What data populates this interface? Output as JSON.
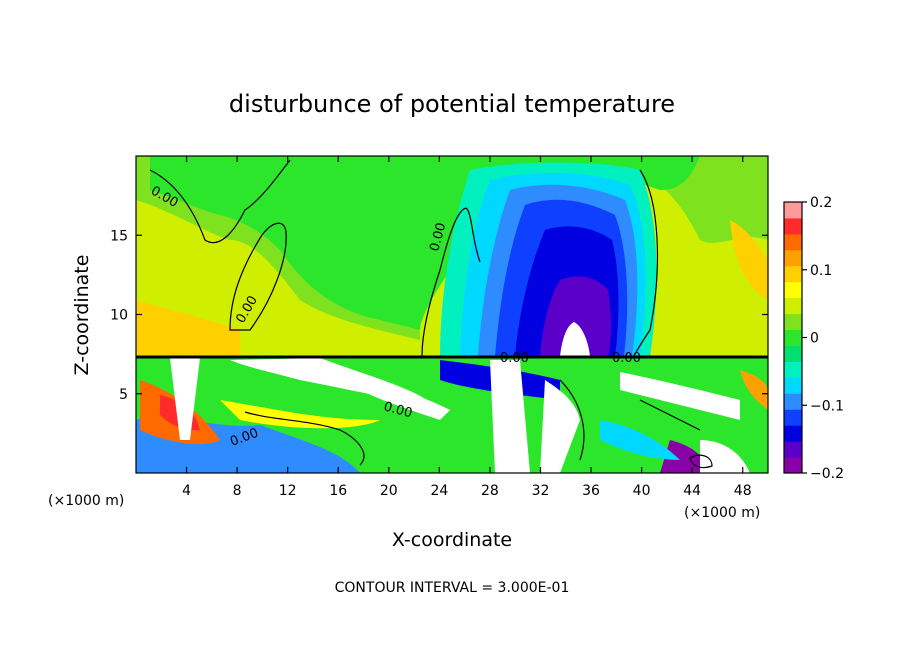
{
  "chart_data": {
    "type": "heatmap",
    "title": "disturbunce of potential temperature",
    "xlabel": "X-coordinate",
    "ylabel": "Z-coordinate",
    "x_unit": "(×1000 m)",
    "x_unit_right": "(×1000 m)",
    "xlim": [
      0,
      50
    ],
    "ylim": [
      0,
      20
    ],
    "x_ticks": [
      4,
      8,
      12,
      16,
      20,
      24,
      28,
      32,
      36,
      40,
      44,
      48
    ],
    "y_ticks": [
      5,
      10,
      15
    ],
    "colorbar": {
      "range": [
        -0.2,
        0.2
      ],
      "tick_values": [
        0.2,
        0.1,
        0,
        -0.1,
        -0.2
      ],
      "tick_labels": [
        "0.2",
        "0.1",
        "0",
        "−0.1",
        "−0.2"
      ],
      "colors": [
        "#8a00a8",
        "#5a00c8",
        "#0000e0",
        "#1040ff",
        "#2f8cff",
        "#00d8ff",
        "#00f0c0",
        "#00e070",
        "#2ce62c",
        "#7fe21e",
        "#cfee00",
        "#ffff00",
        "#ffd000",
        "#ffa000",
        "#ff6a00",
        "#ff2a2a",
        "#ff9a9a"
      ]
    },
    "contour_labels": [
      "0.00",
      "0.00",
      "0.00",
      "0.00",
      "0.00",
      "0.00",
      "0.00"
    ],
    "contour_interval": "CONTOUR INTERVAL = 3.000E-01"
  }
}
